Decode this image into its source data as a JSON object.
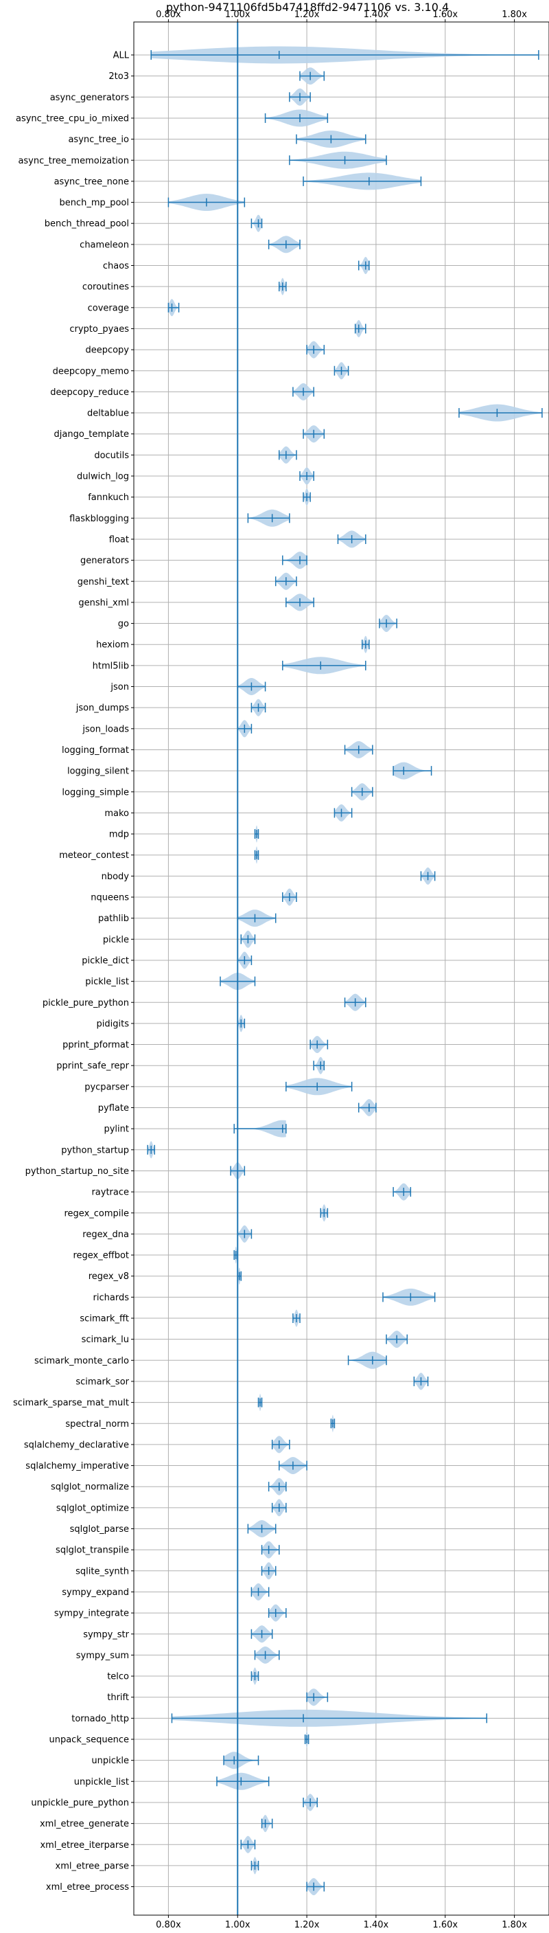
{
  "chart_data": {
    "type": "violin",
    "title": "python-9471106fd5b47418ffd2-9471106 vs. 3.10.4",
    "orientation": "horizontal",
    "xlim": [
      0.7,
      1.9
    ],
    "x_ticks": [
      "0.80x",
      "1.00x",
      "1.20x",
      "1.40x",
      "1.60x",
      "1.80x"
    ],
    "x_tick_values": [
      0.8,
      1.0,
      1.2,
      1.4,
      1.6,
      1.8
    ],
    "reference_line": 1.0,
    "grid": true,
    "color": "#1f77b4",
    "fill_color": "#b8d3ea",
    "benchmarks": [
      {
        "name": "ALL",
        "min": 0.75,
        "max": 1.87,
        "median": 1.12,
        "mean": 1.13
      },
      {
        "name": "2to3",
        "min": 1.18,
        "max": 1.25,
        "median": 1.21,
        "mean": 1.21
      },
      {
        "name": "async_generators",
        "min": 1.15,
        "max": 1.21,
        "median": 1.18,
        "mean": 1.18
      },
      {
        "name": "async_tree_cpu_io_mixed",
        "min": 1.08,
        "max": 1.26,
        "median": 1.18,
        "mean": 1.17
      },
      {
        "name": "async_tree_io",
        "min": 1.17,
        "max": 1.37,
        "median": 1.27,
        "mean": 1.27
      },
      {
        "name": "async_tree_memoization",
        "min": 1.15,
        "max": 1.43,
        "median": 1.31,
        "mean": 1.3
      },
      {
        "name": "async_tree_none",
        "min": 1.19,
        "max": 1.53,
        "median": 1.38,
        "mean": 1.37
      },
      {
        "name": "bench_mp_pool",
        "min": 0.8,
        "max": 1.02,
        "median": 0.91,
        "mean": 0.91
      },
      {
        "name": "bench_thread_pool",
        "min": 1.04,
        "max": 1.07,
        "median": 1.06,
        "mean": 1.06
      },
      {
        "name": "chameleon",
        "min": 1.09,
        "max": 1.18,
        "median": 1.14,
        "mean": 1.14
      },
      {
        "name": "chaos",
        "min": 1.35,
        "max": 1.38,
        "median": 1.37,
        "mean": 1.37
      },
      {
        "name": "coroutines",
        "min": 1.12,
        "max": 1.14,
        "median": 1.13,
        "mean": 1.13
      },
      {
        "name": "coverage",
        "min": 0.8,
        "max": 0.83,
        "median": 0.81,
        "mean": 0.81
      },
      {
        "name": "crypto_pyaes",
        "min": 1.34,
        "max": 1.37,
        "median": 1.35,
        "mean": 1.35
      },
      {
        "name": "deepcopy",
        "min": 1.2,
        "max": 1.25,
        "median": 1.22,
        "mean": 1.22
      },
      {
        "name": "deepcopy_memo",
        "min": 1.28,
        "max": 1.32,
        "median": 1.3,
        "mean": 1.3
      },
      {
        "name": "deepcopy_reduce",
        "min": 1.16,
        "max": 1.22,
        "median": 1.19,
        "mean": 1.19
      },
      {
        "name": "deltablue",
        "min": 1.64,
        "max": 1.88,
        "median": 1.75,
        "mean": 1.75
      },
      {
        "name": "django_template",
        "min": 1.19,
        "max": 1.25,
        "median": 1.22,
        "mean": 1.22
      },
      {
        "name": "docutils",
        "min": 1.12,
        "max": 1.17,
        "median": 1.14,
        "mean": 1.14
      },
      {
        "name": "dulwich_log",
        "min": 1.18,
        "max": 1.22,
        "median": 1.2,
        "mean": 1.2
      },
      {
        "name": "fannkuch",
        "min": 1.19,
        "max": 1.21,
        "median": 1.2,
        "mean": 1.2
      },
      {
        "name": "flaskblogging",
        "min": 1.03,
        "max": 1.15,
        "median": 1.1,
        "mean": 1.09
      },
      {
        "name": "float",
        "min": 1.29,
        "max": 1.37,
        "median": 1.33,
        "mean": 1.33
      },
      {
        "name": "generators",
        "min": 1.13,
        "max": 1.2,
        "median": 1.18,
        "mean": 1.17
      },
      {
        "name": "genshi_text",
        "min": 1.11,
        "max": 1.17,
        "median": 1.14,
        "mean": 1.14
      },
      {
        "name": "genshi_xml",
        "min": 1.14,
        "max": 1.22,
        "median": 1.18,
        "mean": 1.18
      },
      {
        "name": "go",
        "min": 1.41,
        "max": 1.46,
        "median": 1.43,
        "mean": 1.43
      },
      {
        "name": "hexiom",
        "min": 1.36,
        "max": 1.38,
        "median": 1.37,
        "mean": 1.37
      },
      {
        "name": "html5lib",
        "min": 1.13,
        "max": 1.37,
        "median": 1.24,
        "mean": 1.25
      },
      {
        "name": "json",
        "min": 1.0,
        "max": 1.08,
        "median": 1.04,
        "mean": 1.04
      },
      {
        "name": "json_dumps",
        "min": 1.04,
        "max": 1.08,
        "median": 1.06,
        "mean": 1.06
      },
      {
        "name": "json_loads",
        "min": 1.0,
        "max": 1.04,
        "median": 1.02,
        "mean": 1.02
      },
      {
        "name": "logging_format",
        "min": 1.31,
        "max": 1.39,
        "median": 1.35,
        "mean": 1.35
      },
      {
        "name": "logging_silent",
        "min": 1.45,
        "max": 1.56,
        "median": 1.48,
        "mean": 1.49
      },
      {
        "name": "logging_simple",
        "min": 1.33,
        "max": 1.39,
        "median": 1.36,
        "mean": 1.36
      },
      {
        "name": "mako",
        "min": 1.28,
        "max": 1.33,
        "median": 1.3,
        "mean": 1.3
      },
      {
        "name": "mdp",
        "min": 1.05,
        "max": 1.06,
        "median": 1.055,
        "mean": 1.055
      },
      {
        "name": "meteor_contest",
        "min": 1.05,
        "max": 1.06,
        "median": 1.055,
        "mean": 1.055
      },
      {
        "name": "nbody",
        "min": 1.53,
        "max": 1.57,
        "median": 1.55,
        "mean": 1.55
      },
      {
        "name": "nqueens",
        "min": 1.13,
        "max": 1.17,
        "median": 1.15,
        "mean": 1.15
      },
      {
        "name": "pathlib",
        "min": 1.0,
        "max": 1.11,
        "median": 1.05,
        "mean": 1.05
      },
      {
        "name": "pickle",
        "min": 1.01,
        "max": 1.05,
        "median": 1.03,
        "mean": 1.03
      },
      {
        "name": "pickle_dict",
        "min": 1.0,
        "max": 1.04,
        "median": 1.02,
        "mean": 1.02
      },
      {
        "name": "pickle_list",
        "min": 0.95,
        "max": 1.05,
        "median": 1.0,
        "mean": 1.0
      },
      {
        "name": "pickle_pure_python",
        "min": 1.31,
        "max": 1.37,
        "median": 1.34,
        "mean": 1.34
      },
      {
        "name": "pidigits",
        "min": 1.0,
        "max": 1.02,
        "median": 1.01,
        "mean": 1.01
      },
      {
        "name": "pprint_pformat",
        "min": 1.21,
        "max": 1.26,
        "median": 1.23,
        "mean": 1.23
      },
      {
        "name": "pprint_safe_repr",
        "min": 1.22,
        "max": 1.25,
        "median": 1.24,
        "mean": 1.24
      },
      {
        "name": "pycparser",
        "min": 1.14,
        "max": 1.33,
        "median": 1.23,
        "mean": 1.23
      },
      {
        "name": "pyflate",
        "min": 1.35,
        "max": 1.4,
        "median": 1.38,
        "mean": 1.38
      },
      {
        "name": "pylint",
        "min": 0.99,
        "max": 1.14,
        "median": 1.13,
        "mean": 1.1
      },
      {
        "name": "python_startup",
        "min": 0.74,
        "max": 0.76,
        "median": 0.75,
        "mean": 0.75
      },
      {
        "name": "python_startup_no_site",
        "min": 0.98,
        "max": 1.02,
        "median": 1.0,
        "mean": 1.0
      },
      {
        "name": "raytrace",
        "min": 1.45,
        "max": 1.5,
        "median": 1.48,
        "mean": 1.48
      },
      {
        "name": "regex_compile",
        "min": 1.24,
        "max": 1.26,
        "median": 1.25,
        "mean": 1.25
      },
      {
        "name": "regex_dna",
        "min": 1.0,
        "max": 1.04,
        "median": 1.02,
        "mean": 1.02
      },
      {
        "name": "regex_effbot",
        "min": 0.99,
        "max": 1.0,
        "median": 0.995,
        "mean": 0.995
      },
      {
        "name": "regex_v8",
        "min": 1.0,
        "max": 1.01,
        "median": 1.005,
        "mean": 1.005
      },
      {
        "name": "richards",
        "min": 1.42,
        "max": 1.57,
        "median": 1.5,
        "mean": 1.49
      },
      {
        "name": "scimark_fft",
        "min": 1.16,
        "max": 1.18,
        "median": 1.17,
        "mean": 1.17
      },
      {
        "name": "scimark_lu",
        "min": 1.43,
        "max": 1.49,
        "median": 1.46,
        "mean": 1.46
      },
      {
        "name": "scimark_monte_carlo",
        "min": 1.32,
        "max": 1.43,
        "median": 1.39,
        "mean": 1.38
      },
      {
        "name": "scimark_sor",
        "min": 1.51,
        "max": 1.55,
        "median": 1.53,
        "mean": 1.53
      },
      {
        "name": "scimark_sparse_mat_mult",
        "min": 1.06,
        "max": 1.07,
        "median": 1.065,
        "mean": 1.065
      },
      {
        "name": "spectral_norm",
        "min": 1.27,
        "max": 1.28,
        "median": 1.275,
        "mean": 1.275
      },
      {
        "name": "sqlalchemy_declarative",
        "min": 1.1,
        "max": 1.15,
        "median": 1.12,
        "mean": 1.12
      },
      {
        "name": "sqlalchemy_imperative",
        "min": 1.12,
        "max": 1.2,
        "median": 1.16,
        "mean": 1.16
      },
      {
        "name": "sqlglot_normalize",
        "min": 1.09,
        "max": 1.14,
        "median": 1.12,
        "mean": 1.12
      },
      {
        "name": "sqlglot_optimize",
        "min": 1.1,
        "max": 1.14,
        "median": 1.12,
        "mean": 1.12
      },
      {
        "name": "sqlglot_parse",
        "min": 1.03,
        "max": 1.11,
        "median": 1.07,
        "mean": 1.07
      },
      {
        "name": "sqlglot_transpile",
        "min": 1.07,
        "max": 1.12,
        "median": 1.09,
        "mean": 1.09
      },
      {
        "name": "sqlite_synth",
        "min": 1.07,
        "max": 1.11,
        "median": 1.09,
        "mean": 1.09
      },
      {
        "name": "sympy_expand",
        "min": 1.04,
        "max": 1.09,
        "median": 1.06,
        "mean": 1.06
      },
      {
        "name": "sympy_integrate",
        "min": 1.09,
        "max": 1.14,
        "median": 1.11,
        "mean": 1.11
      },
      {
        "name": "sympy_str",
        "min": 1.04,
        "max": 1.1,
        "median": 1.07,
        "mean": 1.07
      },
      {
        "name": "sympy_sum",
        "min": 1.05,
        "max": 1.12,
        "median": 1.08,
        "mean": 1.08
      },
      {
        "name": "telco",
        "min": 1.04,
        "max": 1.06,
        "median": 1.05,
        "mean": 1.05
      },
      {
        "name": "thrift",
        "min": 1.2,
        "max": 1.26,
        "median": 1.22,
        "mean": 1.22
      },
      {
        "name": "tornado_http",
        "min": 0.81,
        "max": 1.72,
        "median": 1.19,
        "mean": 1.19
      },
      {
        "name": "unpack_sequence",
        "min": 1.195,
        "max": 1.205,
        "median": 1.2,
        "mean": 1.2
      },
      {
        "name": "unpickle",
        "min": 0.96,
        "max": 1.06,
        "median": 0.99,
        "mean": 1.0
      },
      {
        "name": "unpickle_list",
        "min": 0.94,
        "max": 1.09,
        "median": 1.01,
        "mean": 1.02
      },
      {
        "name": "unpickle_pure_python",
        "min": 1.19,
        "max": 1.23,
        "median": 1.21,
        "mean": 1.21
      },
      {
        "name": "xml_etree_generate",
        "min": 1.07,
        "max": 1.1,
        "median": 1.08,
        "mean": 1.08
      },
      {
        "name": "xml_etree_iterparse",
        "min": 1.01,
        "max": 1.05,
        "median": 1.03,
        "mean": 1.03
      },
      {
        "name": "xml_etree_parse",
        "min": 1.04,
        "max": 1.06,
        "median": 1.05,
        "mean": 1.05
      },
      {
        "name": "xml_etree_process",
        "min": 1.2,
        "max": 1.25,
        "median": 1.22,
        "mean": 1.22
      }
    ]
  }
}
